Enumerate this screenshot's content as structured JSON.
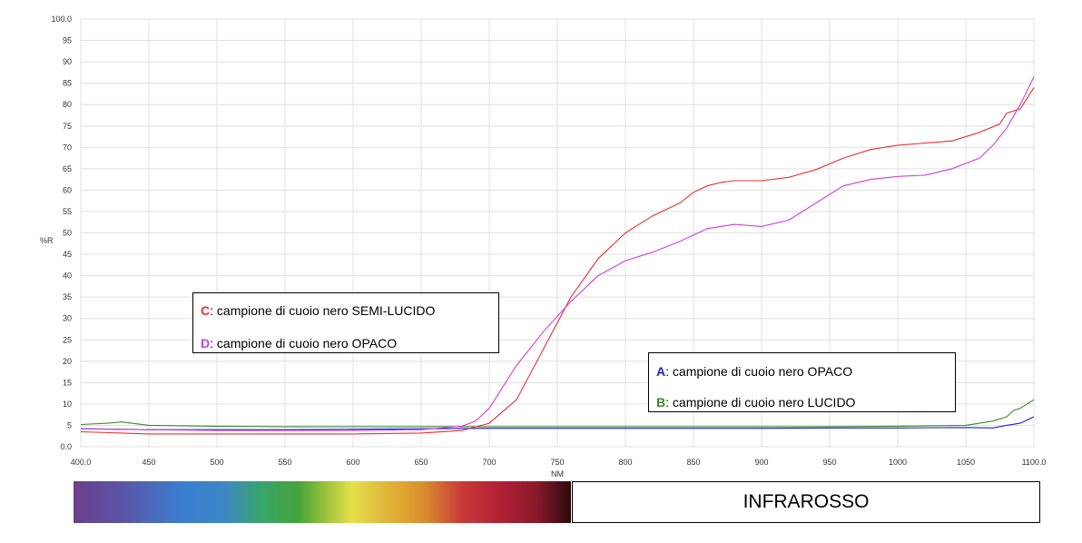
{
  "chart_data": {
    "type": "line",
    "xlabel": "NM",
    "ylabel": "%R",
    "xlim": [
      400,
      1100
    ],
    "ylim": [
      0,
      100
    ],
    "x_ticks": [
      "400.0",
      "450",
      "500",
      "550",
      "600",
      "650",
      "700",
      "750",
      "800",
      "850",
      "900",
      "950",
      "1000",
      "1050",
      "1100.0"
    ],
    "y_ticks": [
      "0.0",
      "5",
      "10",
      "15",
      "20",
      "25",
      "30",
      "35",
      "40",
      "45",
      "50",
      "55",
      "60",
      "65",
      "70",
      "75",
      "80",
      "85",
      "90",
      "95",
      "100.0"
    ],
    "grid": true,
    "series": [
      {
        "key": "A",
        "color": "#1f1fd6",
        "x": [
          400,
          450,
          500,
          550,
          600,
          650,
          700,
          750,
          800,
          850,
          900,
          950,
          1000,
          1050,
          1070,
          1080,
          1090,
          1100
        ],
        "y": [
          4.2,
          4.0,
          4.0,
          4.0,
          4.1,
          4.2,
          4.3,
          4.3,
          4.3,
          4.3,
          4.3,
          4.4,
          4.4,
          4.5,
          4.4,
          5.0,
          5.5,
          7.0
        ]
      },
      {
        "key": "B",
        "color": "#3a8a2a",
        "x": [
          400,
          420,
          430,
          450,
          500,
          550,
          600,
          650,
          700,
          750,
          800,
          850,
          900,
          950,
          1000,
          1050,
          1070,
          1080,
          1085,
          1090,
          1100
        ],
        "y": [
          5.2,
          5.5,
          5.8,
          5.0,
          4.8,
          4.7,
          4.7,
          4.7,
          4.7,
          4.7,
          4.7,
          4.7,
          4.7,
          4.7,
          4.8,
          5.0,
          6.0,
          7.0,
          8.5,
          9.0,
          11.0
        ]
      },
      {
        "key": "C",
        "color": "#e83030",
        "x": [
          400,
          450,
          500,
          550,
          600,
          650,
          680,
          700,
          720,
          740,
          760,
          780,
          800,
          820,
          840,
          850,
          860,
          870,
          880,
          900,
          920,
          940,
          960,
          980,
          1000,
          1020,
          1040,
          1060,
          1075,
          1080,
          1090,
          1100
        ],
        "y": [
          3.5,
          3.0,
          3.0,
          3.0,
          3.0,
          3.2,
          3.8,
          5.5,
          11,
          23,
          35,
          44,
          50,
          54,
          57,
          59.5,
          61,
          61.8,
          62.2,
          62.2,
          63.0,
          64.8,
          67.5,
          69.5,
          70.5,
          71.0,
          71.5,
          73.5,
          75.5,
          78,
          79,
          84
        ]
      },
      {
        "key": "D",
        "color": "#d040d8",
        "x": [
          400,
          450,
          500,
          550,
          600,
          650,
          680,
          690,
          700,
          710,
          720,
          740,
          760,
          780,
          800,
          820,
          840,
          860,
          880,
          900,
          920,
          940,
          960,
          980,
          1000,
          1020,
          1040,
          1060,
          1070,
          1080,
          1090,
          1100
        ],
        "y": [
          4.2,
          4.0,
          3.8,
          3.8,
          3.8,
          4.0,
          4.8,
          6.0,
          9.0,
          14.0,
          19.0,
          27.0,
          34.0,
          40.0,
          43.5,
          45.5,
          48.0,
          51.0,
          52.0,
          51.5,
          53.0,
          57.0,
          61.0,
          62.5,
          63.2,
          63.5,
          65.0,
          67.5,
          70.5,
          74.5,
          80,
          86.5
        ]
      }
    ]
  },
  "legend_upper": {
    "entries": [
      {
        "key": "C",
        "text": ": campione di cuoio nero SEMI-LUCIDO",
        "color": "#e83030"
      },
      {
        "key": "D",
        "text": ": campione di cuoio nero OPACO",
        "color": "#d040d8"
      }
    ]
  },
  "legend_lower": {
    "entries": [
      {
        "key": "A",
        "text": ": campione di cuoio nero OPACO",
        "color": "#1f1fd6"
      },
      {
        "key": "B",
        "text": ": campione di cuoio nero LUCIDO",
        "color": "#3a8a2a"
      }
    ]
  },
  "infrared_label": "INFRAROSSO"
}
